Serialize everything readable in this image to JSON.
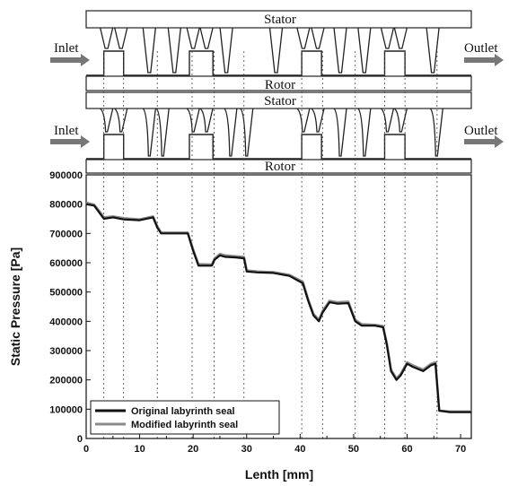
{
  "schematic": {
    "top": {
      "stator_label": "Stator",
      "rotor_label": "Rotor",
      "inlet_label": "Inlet",
      "outlet_label": "Outlet"
    },
    "bottom": {
      "stator_label": "Stator",
      "rotor_label": "Rotor",
      "inlet_label": "Inlet",
      "outlet_label": "Outlet"
    }
  },
  "chart_data": {
    "type": "line",
    "title": "",
    "xlabel": "Lenth [mm]",
    "ylabel": "Static Pressure [Pa]",
    "xlim": [
      0,
      72
    ],
    "ylim": [
      0,
      900000
    ],
    "xticks": [
      0,
      10,
      20,
      30,
      40,
      50,
      60,
      70
    ],
    "yticks": [
      0,
      100000,
      200000,
      300000,
      400000,
      500000,
      600000,
      700000,
      800000,
      900000
    ],
    "legend_position": "bottom-left",
    "series": [
      {
        "name": "Original labyrinth seal",
        "color": "#111111",
        "x": [
          0,
          1.5,
          2.5,
          3.3,
          5,
          7,
          10,
          12.5,
          13.3,
          14,
          19,
          20,
          21,
          23.5,
          24,
          25,
          26,
          28,
          29.5,
          30,
          32,
          35,
          38,
          40.5,
          41.5,
          42.5,
          43.5,
          44.2,
          45.5,
          47,
          49,
          50.3,
          51.5,
          54,
          55.5,
          56.2,
          57,
          58,
          58.8,
          60,
          61,
          63,
          64.5,
          65.3,
          66,
          68,
          72
        ],
        "y": [
          800000,
          795000,
          770000,
          750000,
          755000,
          748000,
          745000,
          755000,
          720000,
          700000,
          700000,
          640000,
          590000,
          590000,
          610000,
          625000,
          620000,
          618000,
          615000,
          570000,
          567000,
          565000,
          555000,
          530000,
          470000,
          420000,
          400000,
          430000,
          465000,
          460000,
          462000,
          400000,
          385000,
          385000,
          380000,
          320000,
          230000,
          200000,
          215000,
          255000,
          245000,
          230000,
          250000,
          255000,
          95000,
          90000,
          90000
        ]
      },
      {
        "name": "Modified labyrinth seal",
        "color": "#8a8a8a",
        "x": [
          0,
          1.5,
          2.5,
          3.3,
          5,
          7,
          10,
          12.5,
          13.3,
          14,
          19,
          20,
          21,
          23.5,
          24,
          25,
          26,
          28,
          29.5,
          30,
          32,
          35,
          38,
          40.5,
          41.5,
          42.5,
          43.5,
          44.2,
          45.5,
          47,
          49,
          50.3,
          51.5,
          54,
          55.5,
          56.2,
          57,
          58,
          58.8,
          60,
          61,
          63,
          64.5,
          65.3,
          66,
          68,
          72
        ],
        "y": [
          805000,
          798000,
          775000,
          755000,
          758000,
          752000,
          748000,
          758000,
          725000,
          703000,
          703000,
          645000,
          595000,
          594000,
          614000,
          630000,
          625000,
          622000,
          620000,
          574000,
          570000,
          568000,
          558000,
          535000,
          475000,
          425000,
          405000,
          435000,
          470000,
          465000,
          467000,
          405000,
          390000,
          388000,
          384000,
          325000,
          235000,
          205000,
          220000,
          260000,
          250000,
          235000,
          255000,
          260000,
          95000,
          92000,
          92000
        ]
      }
    ]
  }
}
